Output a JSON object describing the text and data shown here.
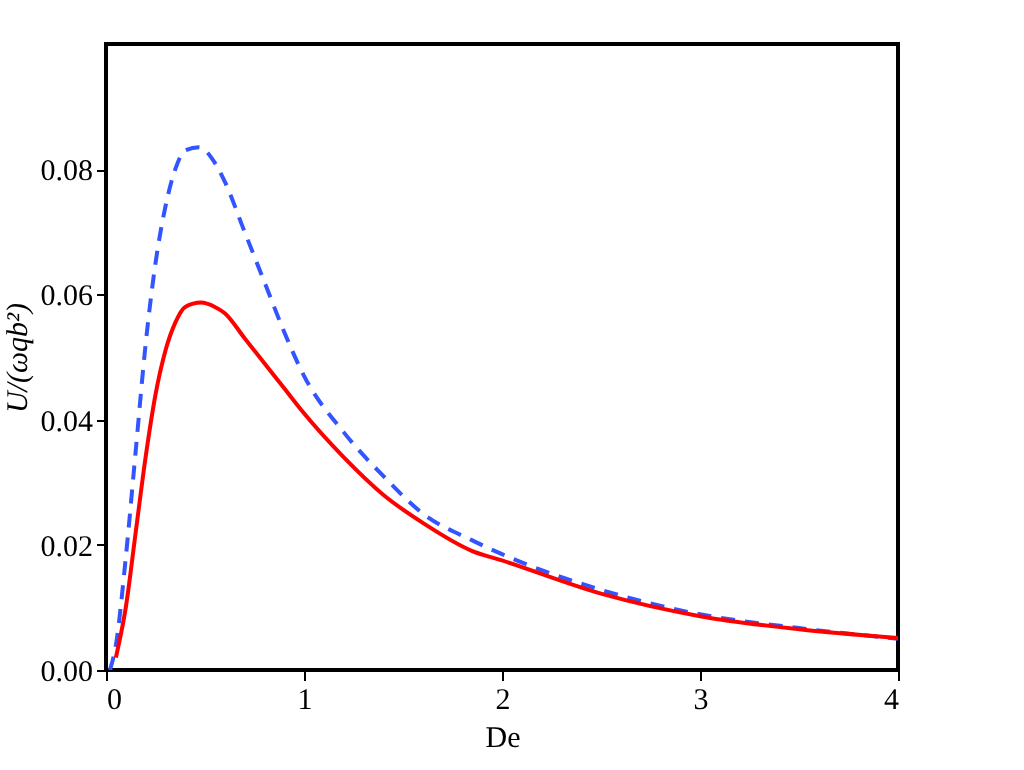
{
  "chart_data": {
    "type": "line",
    "xlabel": "De",
    "ylabel": "U/(ωqb²)",
    "xlim": [
      0,
      4
    ],
    "xticks": [
      0,
      1,
      2,
      3,
      4
    ],
    "ylim": [
      0,
      0.1
    ],
    "yticks": [
      {
        "value": 0,
        "label": "0.00"
      },
      {
        "value": 0.02,
        "label": "0.02"
      },
      {
        "value": 0.04,
        "label": "0.04"
      },
      {
        "value": 0.06,
        "label": "0.06"
      },
      {
        "value": 0.08,
        "label": "0.08"
      }
    ],
    "grid": false,
    "series": [
      {
        "color": "#3355ff",
        "line_style": "dashed",
        "x": [
          0.02,
          0.05,
          0.1,
          0.15,
          0.2,
          0.25,
          0.3,
          0.35,
          0.4,
          0.47,
          0.55,
          0.6,
          0.7,
          0.8,
          0.9,
          1.0,
          1.2,
          1.4,
          1.6,
          1.85,
          2.0,
          2.5,
          3.0,
          3.5,
          4.0
        ],
        "values": [
          0.0,
          0.004,
          0.018,
          0.035,
          0.052,
          0.065,
          0.074,
          0.08,
          0.083,
          0.0835,
          0.081,
          0.078,
          0.07,
          0.062,
          0.054,
          0.047,
          0.038,
          0.031,
          0.025,
          0.0207,
          0.0185,
          0.0128,
          0.0089,
          0.0067,
          0.005
        ]
      },
      {
        "color": "#ff0000",
        "line_style": "solid",
        "x": [
          0.05,
          0.1,
          0.15,
          0.2,
          0.25,
          0.3,
          0.35,
          0.4,
          0.48,
          0.55,
          0.6,
          0.7,
          0.8,
          0.9,
          1.0,
          1.2,
          1.4,
          1.6,
          1.85,
          2.0,
          2.5,
          3.0,
          3.5,
          4.0
        ],
        "values": [
          0.002,
          0.01,
          0.022,
          0.034,
          0.044,
          0.051,
          0.0555,
          0.058,
          0.0587,
          0.058,
          0.057,
          0.053,
          0.049,
          0.045,
          0.041,
          0.034,
          0.028,
          0.0235,
          0.019,
          0.0175,
          0.0122,
          0.0086,
          0.0065,
          0.0051
        ]
      }
    ]
  }
}
